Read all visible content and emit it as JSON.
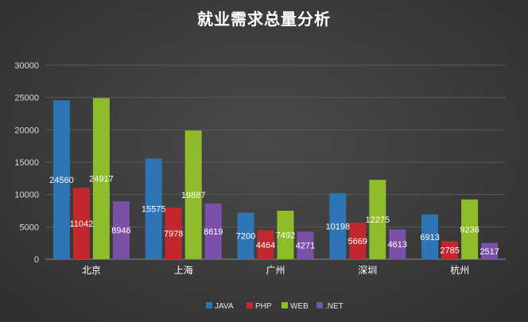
{
  "chart_data": {
    "type": "bar",
    "title": "就业需求总量分析",
    "xlabel": "",
    "ylabel": "",
    "categories": [
      "北京",
      "上海",
      "广州",
      "深圳",
      "杭州"
    ],
    "ylim": [
      0,
      30000
    ],
    "yticks": [
      0,
      5000,
      10000,
      15000,
      20000,
      25000,
      30000
    ],
    "grid": true,
    "legend_position": "bottom",
    "series": [
      {
        "name": "JAVA",
        "color": "#2e75b6",
        "values": [
          24560,
          15575,
          7200,
          10198,
          6913
        ]
      },
      {
        "name": "PHP",
        "color": "#c0282d",
        "values": [
          11042,
          7978,
          4464,
          5669,
          2785
        ]
      },
      {
        "name": "WEB",
        "color": "#8fbc2b",
        "values": [
          24917,
          19887,
          7492,
          12275,
          9236
        ]
      },
      {
        "name": ".NET",
        "color": "#7a50a8",
        "values": [
          8946,
          8619,
          4271,
          4613,
          2517
        ]
      }
    ]
  }
}
